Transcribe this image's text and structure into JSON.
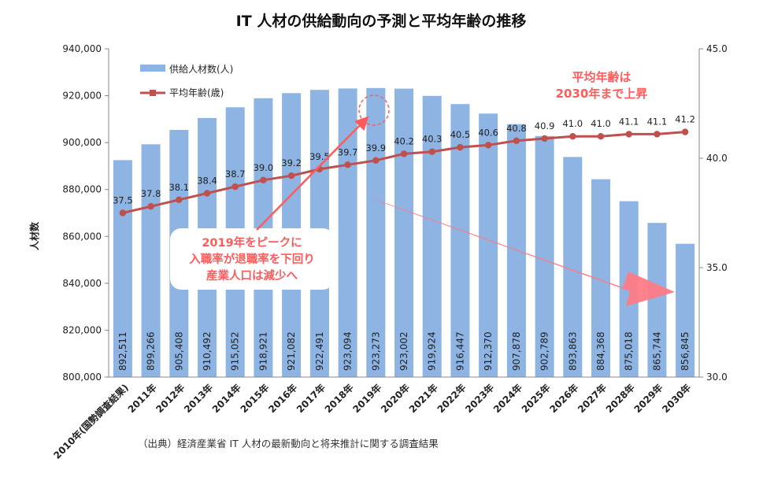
{
  "colors": {
    "bar": "#8db4e2",
    "line": "#c0504d",
    "axis": "#888888",
    "annotation": "#ff5b5b",
    "arrow": "#ff7b86"
  },
  "chart_data": {
    "type": "bar",
    "title": "IT 人材の供給動向の予測と平均年齢の推移",
    "ylabel": "人材数",
    "ylim": [
      800000,
      940000
    ],
    "y_ticks": [
      "800,000",
      "820,000",
      "840,000",
      "860,000",
      "880,000",
      "900,000",
      "920,000",
      "940,000"
    ],
    "y2lim": [
      30.0,
      45.0
    ],
    "y2_ticks": [
      "30.0",
      "35.0",
      "40.0",
      "45.0"
    ],
    "categories": [
      "2010年(国勢調査結果)",
      "2011年",
      "2012年",
      "2013年",
      "2014年",
      "2015年",
      "2016年",
      "2017年",
      "2018年",
      "2019年",
      "2020年",
      "2021年",
      "2022年",
      "2023年",
      "2024年",
      "2025年",
      "2026年",
      "2027年",
      "2028年",
      "2029年",
      "2030年"
    ],
    "series": [
      {
        "name": "供給人材数(人)",
        "kind": "bar",
        "values": [
          892511,
          899266,
          905408,
          910492,
          915052,
          918921,
          921082,
          922491,
          923094,
          923273,
          923002,
          919924,
          916447,
          912370,
          907878,
          902789,
          893863,
          884368,
          875018,
          865744,
          856845
        ],
        "labels": [
          "892,511",
          "899,266",
          "905,408",
          "910,492",
          "915,052",
          "918,921",
          "921,082",
          "922,491",
          "923,094",
          "923,273",
          "923,002",
          "919,924",
          "916,447",
          "912,370",
          "907,878",
          "902,789",
          "893,863",
          "884,368",
          "875,018",
          "865,744",
          "856,845"
        ]
      },
      {
        "name": "平均年齢(歳)",
        "kind": "line",
        "axis": "right",
        "values": [
          37.5,
          37.8,
          38.1,
          38.4,
          38.7,
          39.0,
          39.2,
          39.5,
          39.7,
          39.9,
          40.2,
          40.3,
          40.5,
          40.6,
          40.8,
          40.9,
          41.0,
          41.0,
          41.1,
          41.1,
          41.2
        ],
        "labels": [
          "37.5",
          "37.8",
          "38.1",
          "38.4",
          "38.7",
          "39.0",
          "39.2",
          "39.5",
          "39.7",
          "39.9",
          "40.2",
          "40.3",
          "40.5",
          "40.6",
          "40.8",
          "40.9",
          "41.0",
          "41.0",
          "41.1",
          "41.1",
          "41.2"
        ]
      }
    ],
    "legend": {
      "placement": "top-left",
      "bar_label": "供給人材数(人)",
      "line_label": "平均年齢(歳)"
    },
    "grid": false,
    "annotations": {
      "age_note_line1": "平均年齢は",
      "age_note_line2": "2030年まで上昇",
      "callout_line1": "2019年をピークに",
      "callout_line2": "入職率が退職率を下回り",
      "callout_line3": "産業人口は減少へ"
    }
  },
  "source_note": "（出典）経済産業省 IT 人材の最新動向と将来推計に関する調査結果"
}
